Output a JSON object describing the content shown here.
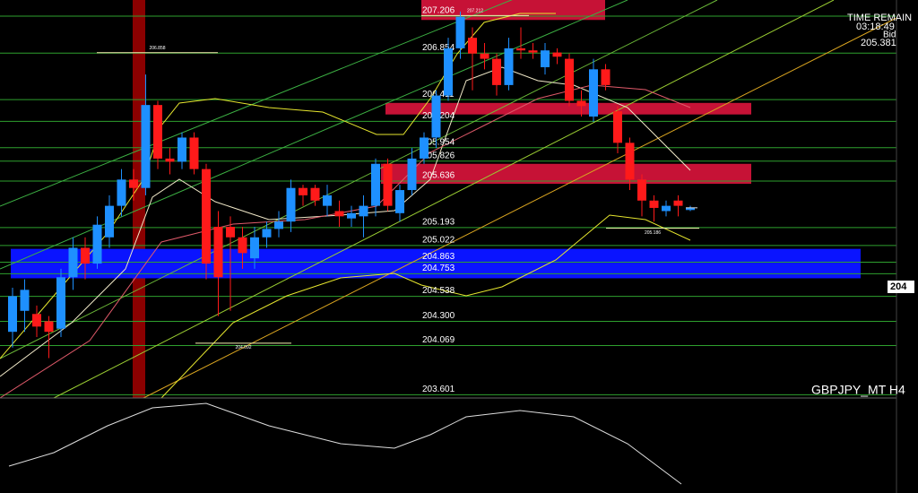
{
  "chart_data": {
    "type": "candlestick",
    "symbol_label": "GBPJPY_MT H4",
    "up_color": "#1e90ff",
    "down_color": "#ff1a1a",
    "ylim": [
      203.57,
      207.36
    ],
    "open": [
      204.2,
      204.4,
      204.37,
      204.3,
      204.23,
      204.72,
      205.0,
      204.85,
      205.1,
      205.4,
      205.65,
      205.57,
      206.36,
      205.85,
      205.82,
      206.05,
      205.75,
      205.2,
      205.2,
      205.1,
      204.9,
      205.1,
      205.18,
      205.25,
      205.57,
      205.57,
      205.4,
      205.35,
      205.28,
      205.3,
      205.4,
      205.8,
      205.33,
      205.55,
      205.85,
      206.05,
      206.45,
      206.9,
      207.0,
      206.85,
      206.8,
      206.55,
      206.9,
      206.88,
      206.72,
      206.86,
      206.8,
      206.4,
      206.25,
      206.7,
      206.3,
      206.0,
      205.65,
      205.45,
      205.35,
      205.45,
      205.36
    ],
    "high": [
      204.62,
      204.7,
      204.45,
      204.35,
      204.8,
      205.1,
      205.1,
      205.3,
      205.5,
      205.75,
      205.75,
      206.65,
      206.4,
      205.95,
      206.1,
      206.1,
      205.8,
      205.35,
      205.3,
      205.2,
      205.2,
      205.25,
      205.35,
      205.65,
      205.6,
      205.6,
      205.6,
      205.45,
      205.4,
      205.5,
      205.85,
      205.85,
      205.6,
      205.95,
      206.1,
      206.5,
      207.0,
      207.25,
      207.1,
      206.95,
      206.85,
      207.0,
      207.1,
      206.95,
      206.95,
      206.9,
      206.85,
      206.5,
      206.8,
      206.75,
      206.35,
      206.05,
      205.7,
      205.5,
      205.45,
      205.5,
      205.4
    ],
    "low": [
      204.05,
      204.2,
      204.15,
      203.95,
      204.15,
      204.6,
      204.7,
      204.8,
      205.0,
      205.3,
      205.45,
      205.5,
      205.75,
      205.7,
      205.75,
      205.7,
      204.7,
      204.35,
      204.4,
      204.8,
      204.8,
      205.0,
      205.1,
      205.15,
      205.4,
      205.4,
      205.3,
      205.2,
      205.2,
      205.1,
      205.3,
      205.35,
      205.25,
      205.5,
      205.8,
      205.95,
      206.4,
      206.8,
      206.5,
      206.7,
      206.45,
      206.5,
      206.8,
      206.8,
      206.65,
      206.75,
      206.35,
      206.25,
      206.2,
      206.5,
      205.9,
      205.55,
      205.3,
      205.25,
      205.3,
      205.3,
      205.35
    ],
    "close": [
      204.54,
      204.6,
      204.25,
      204.2,
      204.72,
      205.0,
      204.85,
      205.22,
      205.4,
      205.65,
      205.57,
      206.36,
      205.85,
      205.82,
      206.05,
      205.75,
      204.85,
      204.72,
      205.1,
      204.95,
      205.1,
      205.18,
      205.25,
      205.57,
      205.5,
      205.45,
      205.5,
      205.3,
      205.33,
      205.4,
      205.8,
      205.4,
      205.55,
      205.85,
      206.05,
      206.45,
      206.9,
      207.2,
      206.85,
      206.8,
      206.55,
      206.9,
      206.88,
      206.86,
      206.88,
      206.82,
      206.4,
      206.35,
      206.7,
      206.55,
      206.0,
      205.65,
      205.45,
      205.38,
      205.4,
      205.4,
      205.38
    ],
    "levels": [
      207.206,
      206.854,
      206.411,
      206.204,
      205.954,
      205.826,
      205.636,
      205.193,
      205.022,
      204.863,
      204.753,
      204.538,
      {
        "value": 204.3,
        "label": "204.300"
      },
      204.069,
      203.601
    ],
    "small_labels": [
      206.858,
      207.212,
      204.092,
      205.186
    ],
    "zones": [
      {
        "low": 207.17,
        "high": 207.36,
        "color": "#dc143c"
      },
      {
        "low": 206.27,
        "high": 206.38,
        "color": "#dc143c"
      },
      {
        "low": 205.61,
        "high": 205.8,
        "color": "#dc143c"
      },
      {
        "low": 204.71,
        "high": 204.99,
        "color": "#0a14ff"
      }
    ],
    "time_remain_label": "TIME REMAIN",
    "time_remain": "03:18:49",
    "bid_label": "Bid",
    "bid": 205.381,
    "right_label": "204"
  }
}
